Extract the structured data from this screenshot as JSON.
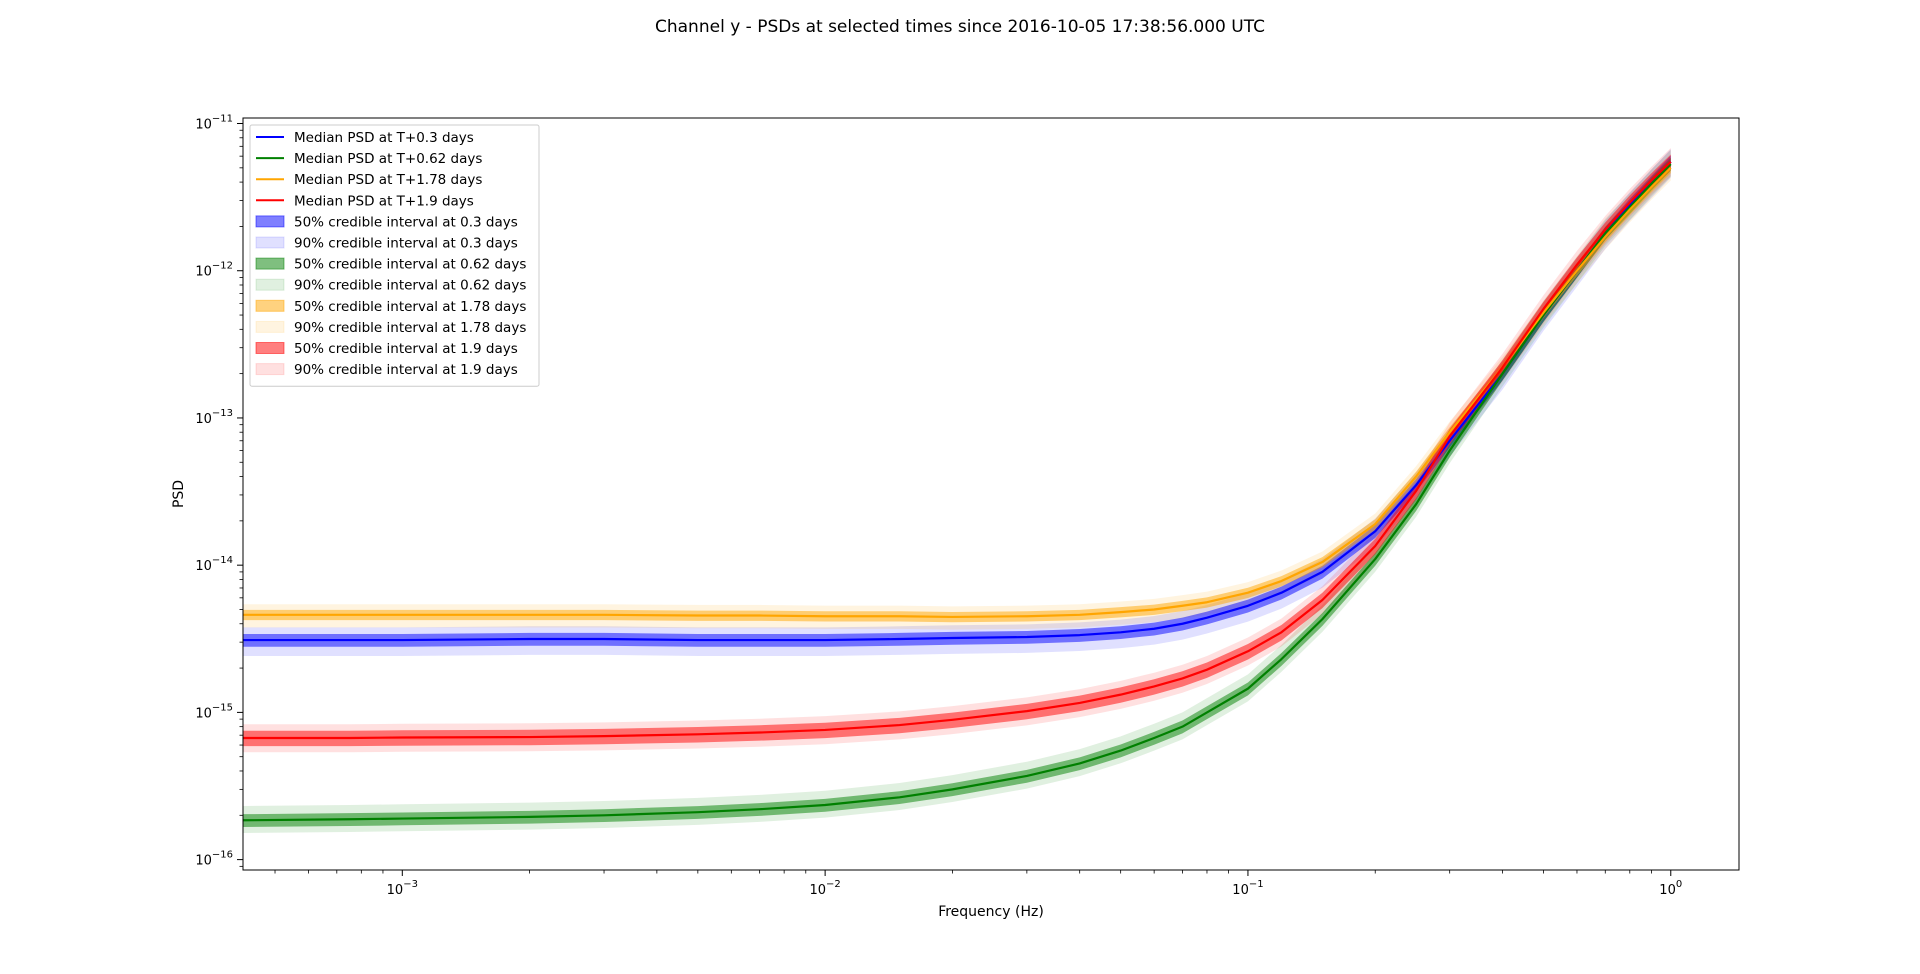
{
  "chart_data": {
    "type": "line",
    "title": "Channel y - PSDs at selected times since 2016-10-05 17:38:56.000 UTC",
    "xlabel": "Frequency (Hz)",
    "ylabel": "PSD",
    "xscale": "log",
    "yscale": "log",
    "xlim": [
      0.00042,
      1.45
    ],
    "ylim": [
      8.5e-17,
      1.09e-11
    ],
    "x_ticks": [
      {
        "value": 0.001,
        "base": "10",
        "exp": "−3"
      },
      {
        "value": 0.01,
        "base": "10",
        "exp": "−2"
      },
      {
        "value": 0.1,
        "base": "10",
        "exp": "−1"
      },
      {
        "value": 1,
        "base": "10",
        "exp": "0"
      }
    ],
    "y_ticks": [
      {
        "value": 1e-16,
        "base": "10",
        "exp": "−16"
      },
      {
        "value": 1e-15,
        "base": "10",
        "exp": "−15"
      },
      {
        "value": 1e-14,
        "base": "10",
        "exp": "−14"
      },
      {
        "value": 1e-13,
        "base": "10",
        "exp": "−13"
      },
      {
        "value": 1e-12,
        "base": "10",
        "exp": "−12"
      },
      {
        "value": 1e-11,
        "base": "10",
        "exp": "−11"
      }
    ],
    "grid": false,
    "legend_position": "top-left",
    "x": [
      0.00042,
      0.00075,
      0.001,
      0.002,
      0.003,
      0.005,
      0.007,
      0.01,
      0.015,
      0.02,
      0.03,
      0.04,
      0.05,
      0.06,
      0.07,
      0.08,
      0.1,
      0.12,
      0.15,
      0.2,
      0.25,
      0.3,
      0.4,
      0.5,
      0.6,
      0.7,
      0.8,
      0.9,
      1.0
    ],
    "series": [
      {
        "name": "Median PSD at T+0.3 days",
        "color": "#0000ff",
        "median": [
          3.1e-15,
          3.1e-15,
          3.1e-15,
          3.15e-15,
          3.15e-15,
          3.1e-15,
          3.1e-15,
          3.1e-15,
          3.15e-15,
          3.2e-15,
          3.25e-15,
          3.35e-15,
          3.5e-15,
          3.7e-15,
          4e-15,
          4.4e-15,
          5.3e-15,
          6.5e-15,
          9e-15,
          1.7e-14,
          3.5e-14,
          7e-14,
          2e-13,
          5e-13,
          1e-12,
          1.8e-12,
          2.8e-12,
          4e-12,
          5.5e-12
        ]
      },
      {
        "name": "Median PSD at T+0.62 days",
        "color": "#008000",
        "median": [
          1.85e-16,
          1.88e-16,
          1.9e-16,
          1.95e-16,
          2e-16,
          2.1e-16,
          2.2e-16,
          2.35e-16,
          2.65e-16,
          3e-16,
          3.7e-16,
          4.5e-16,
          5.5e-16,
          6.7e-16,
          8e-16,
          1e-15,
          1.45e-15,
          2.3e-15,
          4.3e-15,
          1.1e-14,
          2.6e-14,
          6e-14,
          2e-13,
          5e-13,
          1e-12,
          1.8e-12,
          2.7e-12,
          3.9e-12,
          5.3e-12
        ]
      },
      {
        "name": "Median PSD at T+1.78 days",
        "color": "#ffa500",
        "median": [
          4.6e-15,
          4.6e-15,
          4.6e-15,
          4.6e-15,
          4.6e-15,
          4.55e-15,
          4.55e-15,
          4.5e-15,
          4.5e-15,
          4.45e-15,
          4.5e-15,
          4.6e-15,
          4.8e-15,
          5e-15,
          5.3e-15,
          5.6e-15,
          6.5e-15,
          7.8e-15,
          1.05e-14,
          1.9e-14,
          4e-14,
          8e-14,
          2.2e-13,
          5.2e-13,
          1e-12,
          1.7e-12,
          2.6e-12,
          3.7e-12,
          5e-12
        ]
      },
      {
        "name": "Median PSD at T+1.9 days",
        "color": "#ff0000",
        "median": [
          6.7e-16,
          6.7e-16,
          6.75e-16,
          6.8e-16,
          6.9e-16,
          7.1e-16,
          7.3e-16,
          7.6e-16,
          8.2e-16,
          8.9e-16,
          1.02e-15,
          1.16e-15,
          1.32e-15,
          1.5e-15,
          1.7e-15,
          1.95e-15,
          2.6e-15,
          3.5e-15,
          5.8e-15,
          1.35e-14,
          3.2e-14,
          7.5e-14,
          2.2e-13,
          5.5e-13,
          1.1e-12,
          1.9e-12,
          2.9e-12,
          4.1e-12,
          5.5e-12
        ]
      }
    ],
    "bands": [
      {
        "label": "50% credible interval at 0.3 days",
        "color": "#0000ff",
        "alpha": 0.5,
        "series": 0,
        "lo": 0.9,
        "hi": 1.1
      },
      {
        "label": "90% credible interval at 0.3 days",
        "color": "#0000ff",
        "alpha": 0.12,
        "series": 0,
        "lo": 0.78,
        "hi": 1.22
      },
      {
        "label": "50% credible interval at 0.62 days",
        "color": "#008000",
        "alpha": 0.5,
        "series": 1,
        "lo": 0.9,
        "hi": 1.1
      },
      {
        "label": "90% credible interval at 0.62 days",
        "color": "#008000",
        "alpha": 0.12,
        "series": 1,
        "lo": 0.82,
        "hi": 1.25
      },
      {
        "label": "50% credible interval at 1.78 days",
        "color": "#ffa500",
        "alpha": 0.5,
        "series": 2,
        "lo": 0.92,
        "hi": 1.08
      },
      {
        "label": "90% credible interval at 1.78 days",
        "color": "#ffa500",
        "alpha": 0.12,
        "series": 2,
        "lo": 0.82,
        "hi": 1.18
      },
      {
        "label": "50% credible interval at 1.9 days",
        "color": "#ff0000",
        "alpha": 0.5,
        "series": 3,
        "lo": 0.88,
        "hi": 1.12
      },
      {
        "label": "90% credible interval at 1.9 days",
        "color": "#ff0000",
        "alpha": 0.12,
        "series": 3,
        "lo": 0.8,
        "hi": 1.24
      }
    ]
  }
}
